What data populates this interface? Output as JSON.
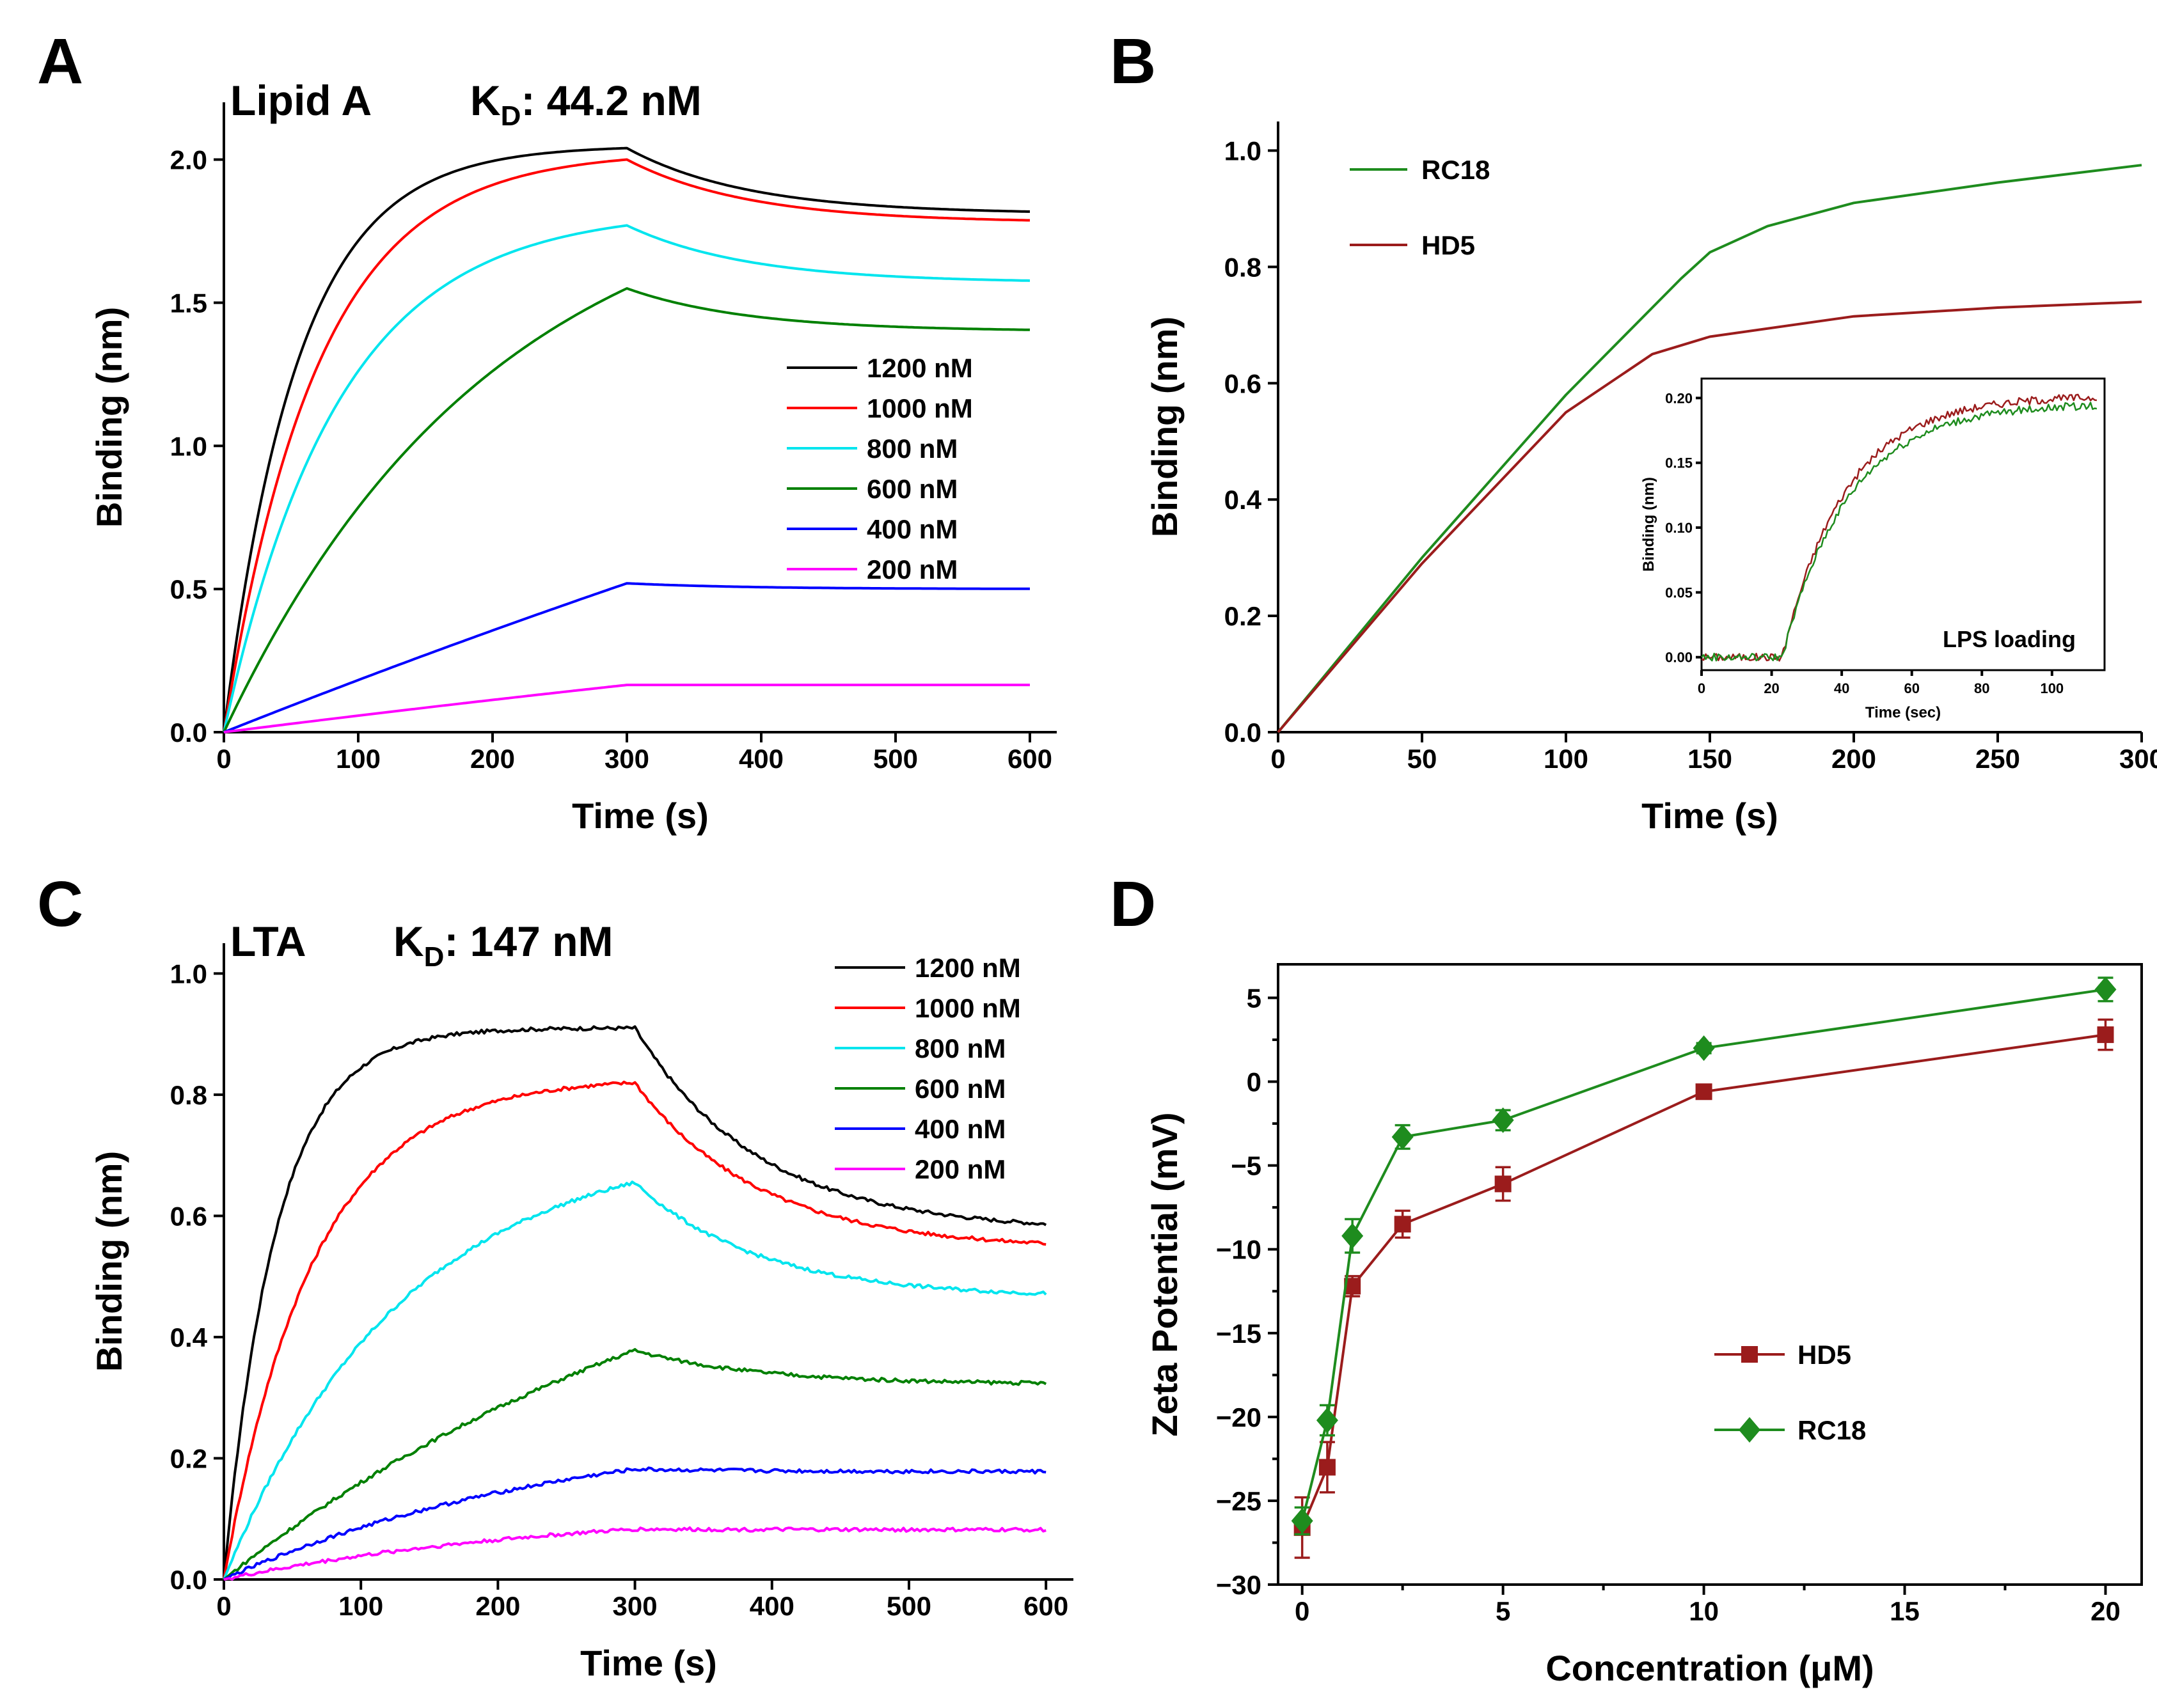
{
  "chart_data": [
    {
      "panel": "A",
      "type": "line",
      "title": "Lipid A",
      "kd_label": "K",
      "kd_sub": "D",
      "kd_value": ": 44.2 nM",
      "xlabel": "Time   (s)",
      "ylabel": "Binding (nm)",
      "xlim": [
        0,
        620
      ],
      "ylim": [
        0,
        2.2
      ],
      "xticks": [
        0,
        100,
        200,
        300,
        400,
        500,
        600
      ],
      "yticks": [
        0.0,
        0.5,
        1.0,
        1.5,
        2.0
      ],
      "ytick_labels": [
        "0.0",
        "0.5",
        "1.0",
        "1.5",
        "2.0"
      ],
      "legend_position": "right-middle",
      "association_end": 300,
      "series": [
        {
          "name": "1200 nM",
          "color": "#000000",
          "peak": 2.04,
          "tau": 55,
          "end": 1.81,
          "noise": 0
        },
        {
          "name": "1000 nM",
          "color": "#ff0000",
          "peak": 2.0,
          "tau": 70,
          "end": 1.78,
          "noise": 0
        },
        {
          "name": "800 nM",
          "color": "#00e5ee",
          "peak": 1.77,
          "tau": 85,
          "end": 1.57,
          "noise": 0
        },
        {
          "name": "600 nM",
          "color": "#008000",
          "peak": 1.55,
          "tau": 200,
          "end": 1.4,
          "noise": 0
        },
        {
          "name": "400 nM",
          "color": "#0000ff",
          "peak": 0.52,
          "tau": 2000,
          "end": 0.5,
          "noise": 0
        },
        {
          "name": "200 nM",
          "color": "#ff00ff",
          "peak": 0.165,
          "tau": 2000,
          "end": 0.165,
          "noise": 0
        }
      ]
    },
    {
      "panel": "B",
      "type": "line",
      "xlabel": "Time   (s)",
      "ylabel": "Binding (nm)",
      "xlim": [
        0,
        300
      ],
      "ylim": [
        0,
        1.05
      ],
      "xticks": [
        0,
        50,
        100,
        150,
        200,
        250,
        300
      ],
      "yticks": [
        0.0,
        0.2,
        0.4,
        0.6,
        0.8,
        1.0
      ],
      "ytick_labels": [
        "0.0",
        "0.2",
        "0.4",
        "0.6",
        "0.8",
        "1.0"
      ],
      "legend_position": "top-left",
      "series": [
        {
          "name": "RC18",
          "color": "#1e8c1e",
          "x": [
            0,
            50,
            100,
            140,
            150,
            170,
            200,
            250,
            300
          ],
          "y": [
            0.0,
            0.3,
            0.58,
            0.78,
            0.825,
            0.87,
            0.91,
            0.945,
            0.975
          ]
        },
        {
          "name": "HD5",
          "color": "#9b1c1c",
          "x": [
            0,
            50,
            100,
            130,
            150,
            200,
            250,
            300
          ],
          "y": [
            0.0,
            0.29,
            0.55,
            0.65,
            0.68,
            0.715,
            0.73,
            0.74
          ]
        }
      ],
      "inset": {
        "annotation": "LPS loading",
        "xlabel": "Time (sec)",
        "ylabel": "Binding (nm)",
        "xlim": [
          0,
          115
        ],
        "ylim": [
          -0.01,
          0.215
        ],
        "xticks": [
          0,
          20,
          40,
          60,
          80,
          100
        ],
        "yticks": [
          0.0,
          0.05,
          0.1,
          0.15,
          0.2
        ],
        "ytick_labels": [
          "0.00",
          "0.05",
          "0.10",
          "0.15",
          "0.20"
        ],
        "start": 23,
        "series": [
          {
            "name": "HD5",
            "color": "#9b1c1c",
            "plateau": 0.202,
            "tau": 18
          },
          {
            "name": "RC18",
            "color": "#1e8c1e",
            "plateau": 0.196,
            "tau": 19
          }
        ]
      }
    },
    {
      "panel": "C",
      "type": "line",
      "title": "LTA",
      "kd_label": "K",
      "kd_sub": "D",
      "kd_value": ": 147 nM",
      "xlabel": "Time   (s)",
      "ylabel": "Binding (nm)",
      "xlim": [
        0,
        620
      ],
      "ylim": [
        0,
        1.05
      ],
      "xticks": [
        0,
        100,
        200,
        300,
        400,
        500,
        600
      ],
      "yticks": [
        0.0,
        0.2,
        0.4,
        0.6,
        0.8,
        1.0
      ],
      "ytick_labels": [
        "0.0",
        "0.2",
        "0.4",
        "0.6",
        "0.8",
        "1.0"
      ],
      "legend_position": "top-right",
      "association_end": 300,
      "series": [
        {
          "name": "1200 nM",
          "color": "#000000",
          "peak": 0.91,
          "tau": 38,
          "end": 0.575,
          "noise": 0.003
        },
        {
          "name": "1000 nM",
          "color": "#ff0000",
          "peak": 0.82,
          "tau": 65,
          "end": 0.545,
          "noise": 0.003
        },
        {
          "name": "800 nM",
          "color": "#00e5ee",
          "peak": 0.655,
          "tau": 130,
          "end": 0.465,
          "noise": 0.003
        },
        {
          "name": "600 nM",
          "color": "#008000",
          "peak": 0.378,
          "tau": 380,
          "end": 0.322,
          "noise": 0.003
        },
        {
          "name": "400 nM",
          "color": "#0000ff",
          "peak": 0.182,
          "tau": 250,
          "end": 0.178,
          "noise": 0.003
        },
        {
          "name": "200 nM",
          "color": "#ff00ff",
          "peak": 0.083,
          "tau": 250,
          "end": 0.082,
          "noise": 0.003
        }
      ]
    },
    {
      "panel": "D",
      "type": "line",
      "xlabel": "Concentration (μM)",
      "ylabel": "Zeta Potential (mV)",
      "xlim": [
        -0.6,
        20.9
      ],
      "ylim": [
        -30,
        7
      ],
      "xticks": [
        0,
        5,
        10,
        15,
        20
      ],
      "yticks": [
        -30,
        -25,
        -20,
        -15,
        -10,
        -5,
        0,
        5
      ],
      "ytick_labels": [
        "−30",
        "−25",
        "−20",
        "−15",
        "−10",
        "−5",
        "0",
        "5"
      ],
      "legend_position": "center",
      "series": [
        {
          "name": "HD5",
          "color": "#9b1c1c",
          "marker": "square",
          "x": [
            0,
            0.625,
            1.25,
            2.5,
            5,
            10,
            20
          ],
          "y": [
            -26.6,
            -23.0,
            -12.2,
            -8.5,
            -6.1,
            -0.6,
            2.8
          ],
          "err": [
            1.8,
            1.5,
            0.6,
            0.8,
            1.0,
            0.3,
            0.9
          ]
        },
        {
          "name": "RC18",
          "color": "#1e8c1e",
          "marker": "diamond",
          "x": [
            0,
            0.625,
            1.25,
            2.5,
            5,
            10,
            20
          ],
          "y": [
            -26.2,
            -20.2,
            -9.2,
            -3.3,
            -2.3,
            2.0,
            5.5
          ],
          "err": [
            0.8,
            0.9,
            1.0,
            0.7,
            0.6,
            0.3,
            0.7
          ]
        }
      ]
    }
  ]
}
